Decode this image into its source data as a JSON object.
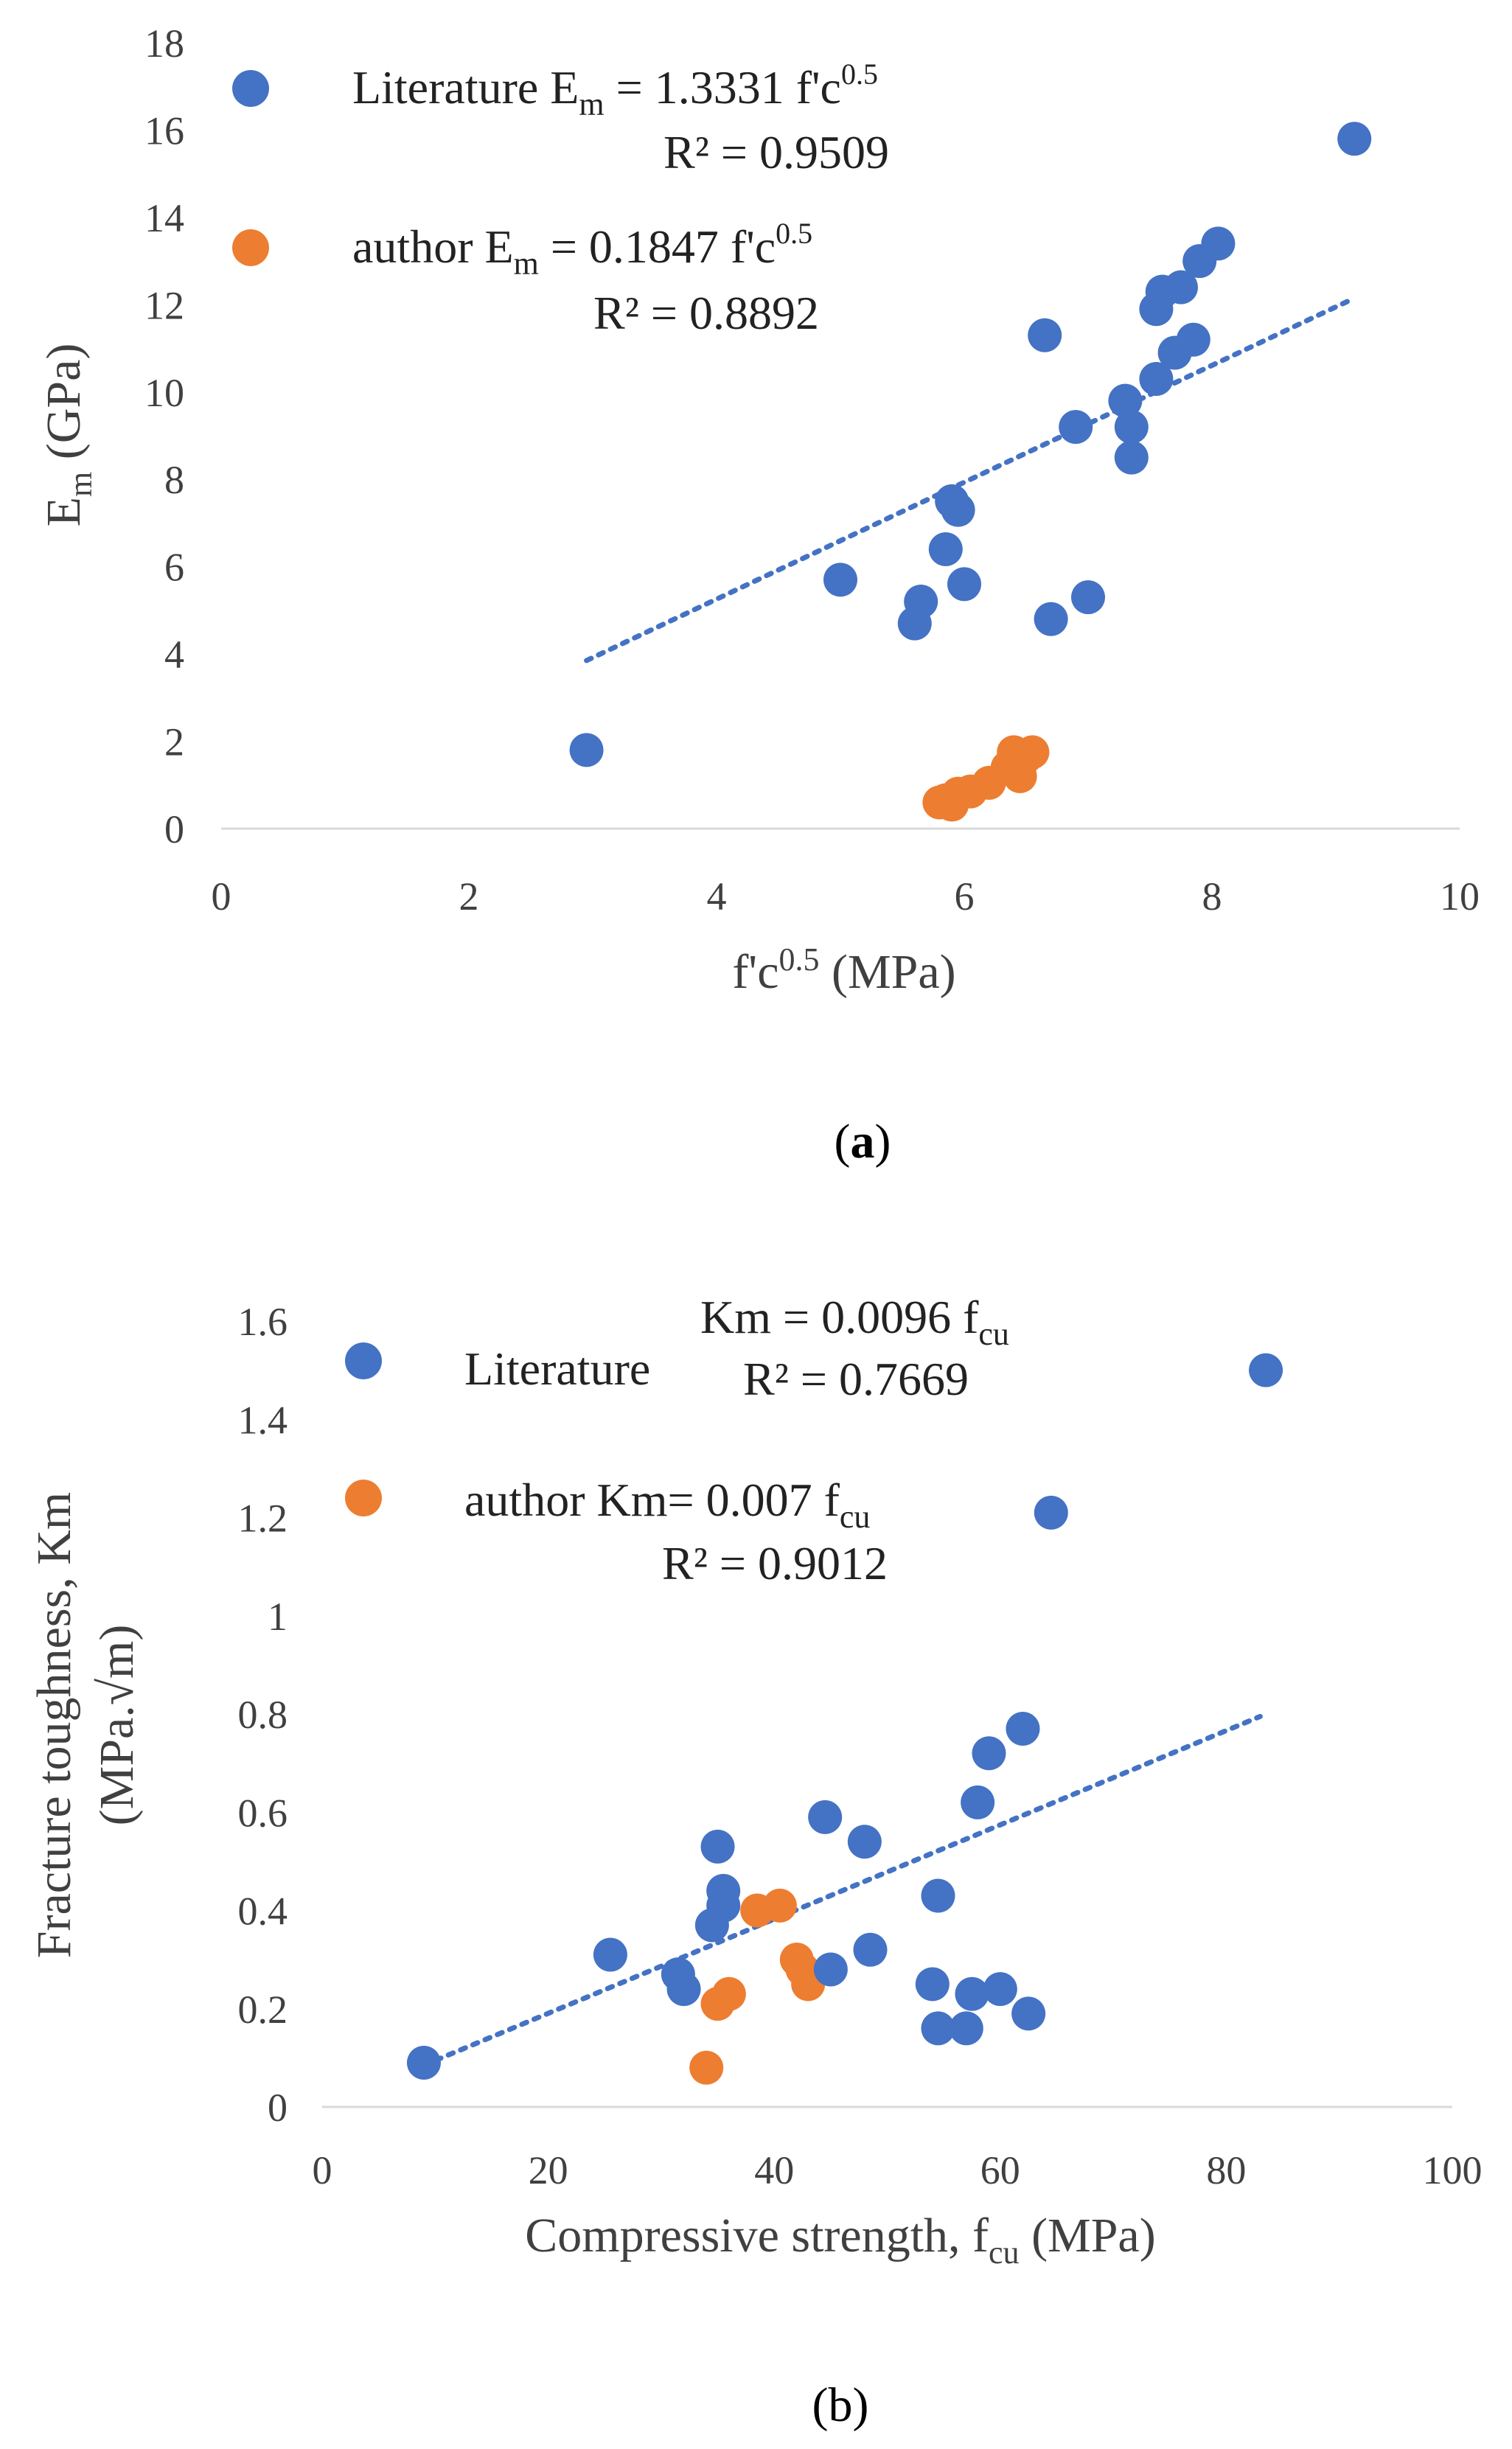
{
  "chart_data": [
    {
      "type": "scatter",
      "panel": "a",
      "caption": "(a)",
      "xlabel": "f'c0.5 (MPa)",
      "ylabel": "Em (GPa)",
      "xlim": [
        0,
        10
      ],
      "ylim": [
        0,
        18
      ],
      "x_ticks": [
        0,
        2,
        4,
        6,
        8,
        10
      ],
      "y_ticks": [
        0,
        2,
        4,
        6,
        8,
        10,
        12,
        14,
        16,
        18
      ],
      "grid": false,
      "legend_position": "top-left",
      "series": [
        {
          "name": "Literature",
          "color": "#4472c4",
          "equation": "Em = 1.3331 f'c0.5",
          "r2": "R² = 0.9509",
          "trendline": {
            "x": [
              2.95,
              9.15
            ],
            "y": [
              3.85,
              12.15
            ]
          },
          "points": [
            {
              "x": 2.95,
              "y": 1.8
            },
            {
              "x": 5.0,
              "y": 5.7
            },
            {
              "x": 5.6,
              "y": 4.7
            },
            {
              "x": 5.65,
              "y": 5.2
            },
            {
              "x": 5.85,
              "y": 6.4
            },
            {
              "x": 5.9,
              "y": 7.5
            },
            {
              "x": 5.95,
              "y": 7.3
            },
            {
              "x": 6.0,
              "y": 5.6
            },
            {
              "x": 6.65,
              "y": 11.3
            },
            {
              "x": 6.7,
              "y": 4.8
            },
            {
              "x": 6.9,
              "y": 9.2
            },
            {
              "x": 7.0,
              "y": 5.3
            },
            {
              "x": 7.3,
              "y": 9.8
            },
            {
              "x": 7.35,
              "y": 9.2
            },
            {
              "x": 7.35,
              "y": 8.5
            },
            {
              "x": 7.55,
              "y": 10.3
            },
            {
              "x": 7.55,
              "y": 11.9
            },
            {
              "x": 7.6,
              "y": 12.3
            },
            {
              "x": 7.7,
              "y": 10.9
            },
            {
              "x": 7.75,
              "y": 12.4
            },
            {
              "x": 7.85,
              "y": 11.2
            },
            {
              "x": 7.9,
              "y": 13.0
            },
            {
              "x": 8.05,
              "y": 13.4
            },
            {
              "x": 9.15,
              "y": 15.8
            }
          ]
        },
        {
          "name": "author",
          "color": "#ed7d31",
          "equation": "Em = 0.1847 f'c0.5",
          "r2": "R² = 0.8892",
          "points": [
            {
              "x": 5.8,
              "y": 0.6
            },
            {
              "x": 5.85,
              "y": 0.65
            },
            {
              "x": 5.9,
              "y": 0.55
            },
            {
              "x": 5.95,
              "y": 0.8
            },
            {
              "x": 6.05,
              "y": 0.85
            },
            {
              "x": 6.2,
              "y": 1.05
            },
            {
              "x": 6.35,
              "y": 1.4
            },
            {
              "x": 6.4,
              "y": 1.75
            },
            {
              "x": 6.45,
              "y": 1.2
            },
            {
              "x": 6.5,
              "y": 1.65
            },
            {
              "x": 6.55,
              "y": 1.75
            }
          ]
        }
      ]
    },
    {
      "type": "scatter",
      "panel": "b",
      "caption": "(b)",
      "xlabel": "Compressive strength, fcu (MPa)",
      "ylabel": "Fracture toughness, Km (MPa.√m)",
      "xlim": [
        0,
        100
      ],
      "ylim": [
        0,
        1.6
      ],
      "x_ticks": [
        0,
        20,
        40,
        60,
        80,
        100
      ],
      "y_ticks": [
        0,
        0.2,
        0.4,
        0.6,
        0.8,
        1,
        1.2,
        1.4,
        1.6
      ],
      "grid": false,
      "legend_position": "top-left",
      "series": [
        {
          "name": "Literature",
          "color": "#4472c4",
          "equation": "Km = 0.0096 fcu",
          "r2": "R² = 0.7669",
          "trendline": {
            "x": [
              9,
              83
            ],
            "y": [
              0.085,
              0.795
            ]
          },
          "points": [
            {
              "x": 9,
              "y": 0.09
            },
            {
              "x": 25.5,
              "y": 0.31
            },
            {
              "x": 31.5,
              "y": 0.27
            },
            {
              "x": 32,
              "y": 0.24
            },
            {
              "x": 34.5,
              "y": 0.37
            },
            {
              "x": 35,
              "y": 0.53
            },
            {
              "x": 35.5,
              "y": 0.44
            },
            {
              "x": 35.5,
              "y": 0.41
            },
            {
              "x": 44.5,
              "y": 0.59
            },
            {
              "x": 45,
              "y": 0.28
            },
            {
              "x": 48,
              "y": 0.54
            },
            {
              "x": 48.5,
              "y": 0.32
            },
            {
              "x": 54,
              "y": 0.25
            },
            {
              "x": 54.5,
              "y": 0.16
            },
            {
              "x": 54.5,
              "y": 0.43
            },
            {
              "x": 57,
              "y": 0.16
            },
            {
              "x": 57.5,
              "y": 0.23
            },
            {
              "x": 58,
              "y": 0.62
            },
            {
              "x": 59,
              "y": 0.72
            },
            {
              "x": 60,
              "y": 0.24
            },
            {
              "x": 62,
              "y": 0.77
            },
            {
              "x": 62.5,
              "y": 0.19
            },
            {
              "x": 64.5,
              "y": 1.21
            },
            {
              "x": 83.5,
              "y": 1.5
            }
          ]
        },
        {
          "name": "author",
          "color": "#ed7d31",
          "equation": "Km= 0.007 fcu",
          "r2": "R² = 0.9012",
          "points": [
            {
              "x": 34,
              "y": 0.08
            },
            {
              "x": 35,
              "y": 0.21
            },
            {
              "x": 36,
              "y": 0.23
            },
            {
              "x": 38.5,
              "y": 0.4
            },
            {
              "x": 40.5,
              "y": 0.41
            },
            {
              "x": 42,
              "y": 0.3
            },
            {
              "x": 42.5,
              "y": 0.28
            },
            {
              "x": 43,
              "y": 0.25
            }
          ]
        }
      ]
    }
  ]
}
